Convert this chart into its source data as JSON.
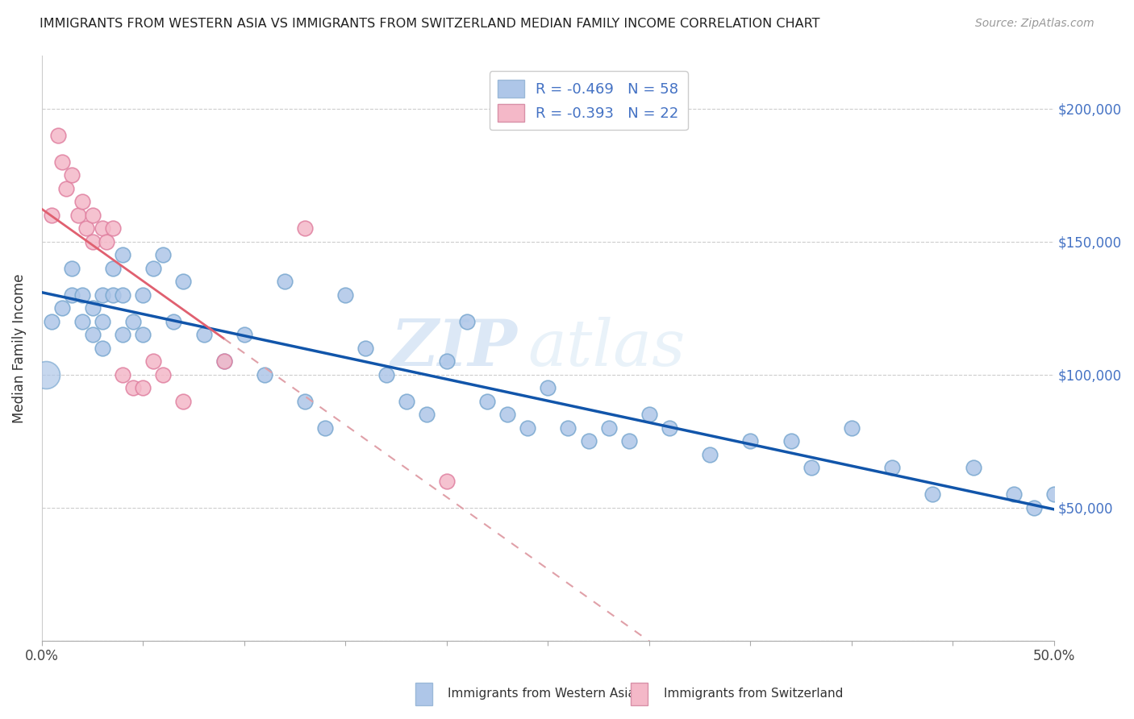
{
  "title": "IMMIGRANTS FROM WESTERN ASIA VS IMMIGRANTS FROM SWITZERLAND MEDIAN FAMILY INCOME CORRELATION CHART",
  "source": "Source: ZipAtlas.com",
  "ylabel": "Median Family Income",
  "legend_label_1": "Immigrants from Western Asia",
  "legend_label_2": "Immigrants from Switzerland",
  "r1": -0.469,
  "n1": 58,
  "r2": -0.393,
  "n2": 22,
  "color1": "#aec6e8",
  "color2": "#f4b8c8",
  "edge_color1": "#7aa8d0",
  "edge_color2": "#e080a0",
  "line_color1": "#1155aa",
  "line_color2": "#d08890",
  "xlim": [
    0.0,
    0.5
  ],
  "ylim": [
    0,
    220000
  ],
  "yticks": [
    0,
    50000,
    100000,
    150000,
    200000
  ],
  "ytick_labels": [
    "",
    "$50,000",
    "$100,000",
    "$150,000",
    "$200,000"
  ],
  "xticks": [
    0.0,
    0.05,
    0.1,
    0.15,
    0.2,
    0.25,
    0.3,
    0.35,
    0.4,
    0.45,
    0.5
  ],
  "xtick_labels": [
    "0.0%",
    "",
    "",
    "",
    "",
    "",
    "",
    "",
    "",
    "",
    "50.0%"
  ],
  "watermark_zip": "ZIP",
  "watermark_atlas": "atlas",
  "western_asia_x": [
    0.005,
    0.01,
    0.015,
    0.015,
    0.02,
    0.02,
    0.025,
    0.025,
    0.03,
    0.03,
    0.03,
    0.035,
    0.035,
    0.04,
    0.04,
    0.04,
    0.045,
    0.05,
    0.05,
    0.055,
    0.06,
    0.065,
    0.07,
    0.08,
    0.09,
    0.1,
    0.11,
    0.12,
    0.13,
    0.14,
    0.15,
    0.16,
    0.17,
    0.18,
    0.19,
    0.2,
    0.21,
    0.22,
    0.23,
    0.24,
    0.25,
    0.26,
    0.27,
    0.28,
    0.29,
    0.3,
    0.31,
    0.33,
    0.35,
    0.37,
    0.38,
    0.4,
    0.42,
    0.44,
    0.46,
    0.48,
    0.49,
    0.5
  ],
  "western_asia_y": [
    120000,
    125000,
    130000,
    140000,
    130000,
    120000,
    125000,
    115000,
    130000,
    120000,
    110000,
    140000,
    130000,
    145000,
    130000,
    115000,
    120000,
    130000,
    115000,
    140000,
    145000,
    120000,
    135000,
    115000,
    105000,
    115000,
    100000,
    135000,
    90000,
    80000,
    130000,
    110000,
    100000,
    90000,
    85000,
    105000,
    120000,
    90000,
    85000,
    80000,
    95000,
    80000,
    75000,
    80000,
    75000,
    85000,
    80000,
    70000,
    75000,
    75000,
    65000,
    80000,
    65000,
    55000,
    65000,
    55000,
    50000,
    55000
  ],
  "switzerland_x": [
    0.005,
    0.008,
    0.01,
    0.012,
    0.015,
    0.018,
    0.02,
    0.022,
    0.025,
    0.025,
    0.03,
    0.032,
    0.035,
    0.04,
    0.045,
    0.05,
    0.055,
    0.06,
    0.07,
    0.09,
    0.13,
    0.2
  ],
  "switzerland_y": [
    160000,
    190000,
    180000,
    170000,
    175000,
    160000,
    165000,
    155000,
    160000,
    150000,
    155000,
    150000,
    155000,
    100000,
    95000,
    95000,
    105000,
    100000,
    90000,
    105000,
    155000,
    60000
  ]
}
